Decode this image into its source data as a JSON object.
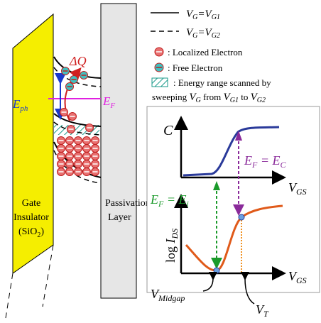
{
  "legend": {
    "solid": {
      "v1": "V",
      "s1": "G",
      "eq": "=",
      "v2": "V",
      "s2": "G1"
    },
    "dashed": {
      "v1": "V",
      "s1": "G",
      "eq": "=",
      "v2": "V",
      "s2": "G2"
    },
    "localized": ": Localized Electron",
    "free": ": Free Electron",
    "scan": {
      "line1": ": Energy range scanned by",
      "pre": "sweeping ",
      "v1": "V",
      "s1": "G",
      "mid": " from ",
      "v2": "V",
      "s2": "G1",
      "to": " to ",
      "v3": "V",
      "s3": "G2"
    }
  },
  "band": {
    "delta_q": "ΔQ",
    "e_ph": {
      "v": "E",
      "sub": "ph"
    },
    "e_f": {
      "v": "E",
      "sub": "F"
    },
    "gate": {
      "line1": "Gate",
      "line2": "Insulator",
      "line3a": "(SiO",
      "line3b": "2",
      "line3c": ")"
    },
    "passivation": {
      "line1": "Passivation",
      "line2": "Layer"
    }
  },
  "inset": {
    "c_axis": "C",
    "ec": {
      "v1": "E",
      "s1": "F",
      "eq": " = ",
      "v2": "E",
      "s2": "C"
    },
    "ei": {
      "v1": "E",
      "s1": "F",
      "eq": " = ",
      "v2": "E",
      "s2": "i"
    },
    "vgs_top": {
      "v": "V",
      "sub": "GS"
    },
    "vgs_bottom": {
      "v": "V",
      "sub": "GS"
    },
    "log_ids": {
      "pre": "log ",
      "v": "I",
      "sub": "DS"
    },
    "v_midgap": {
      "v": "V",
      "sub": "Midgap"
    },
    "v_t": {
      "v": "V",
      "sub": "T"
    }
  }
}
